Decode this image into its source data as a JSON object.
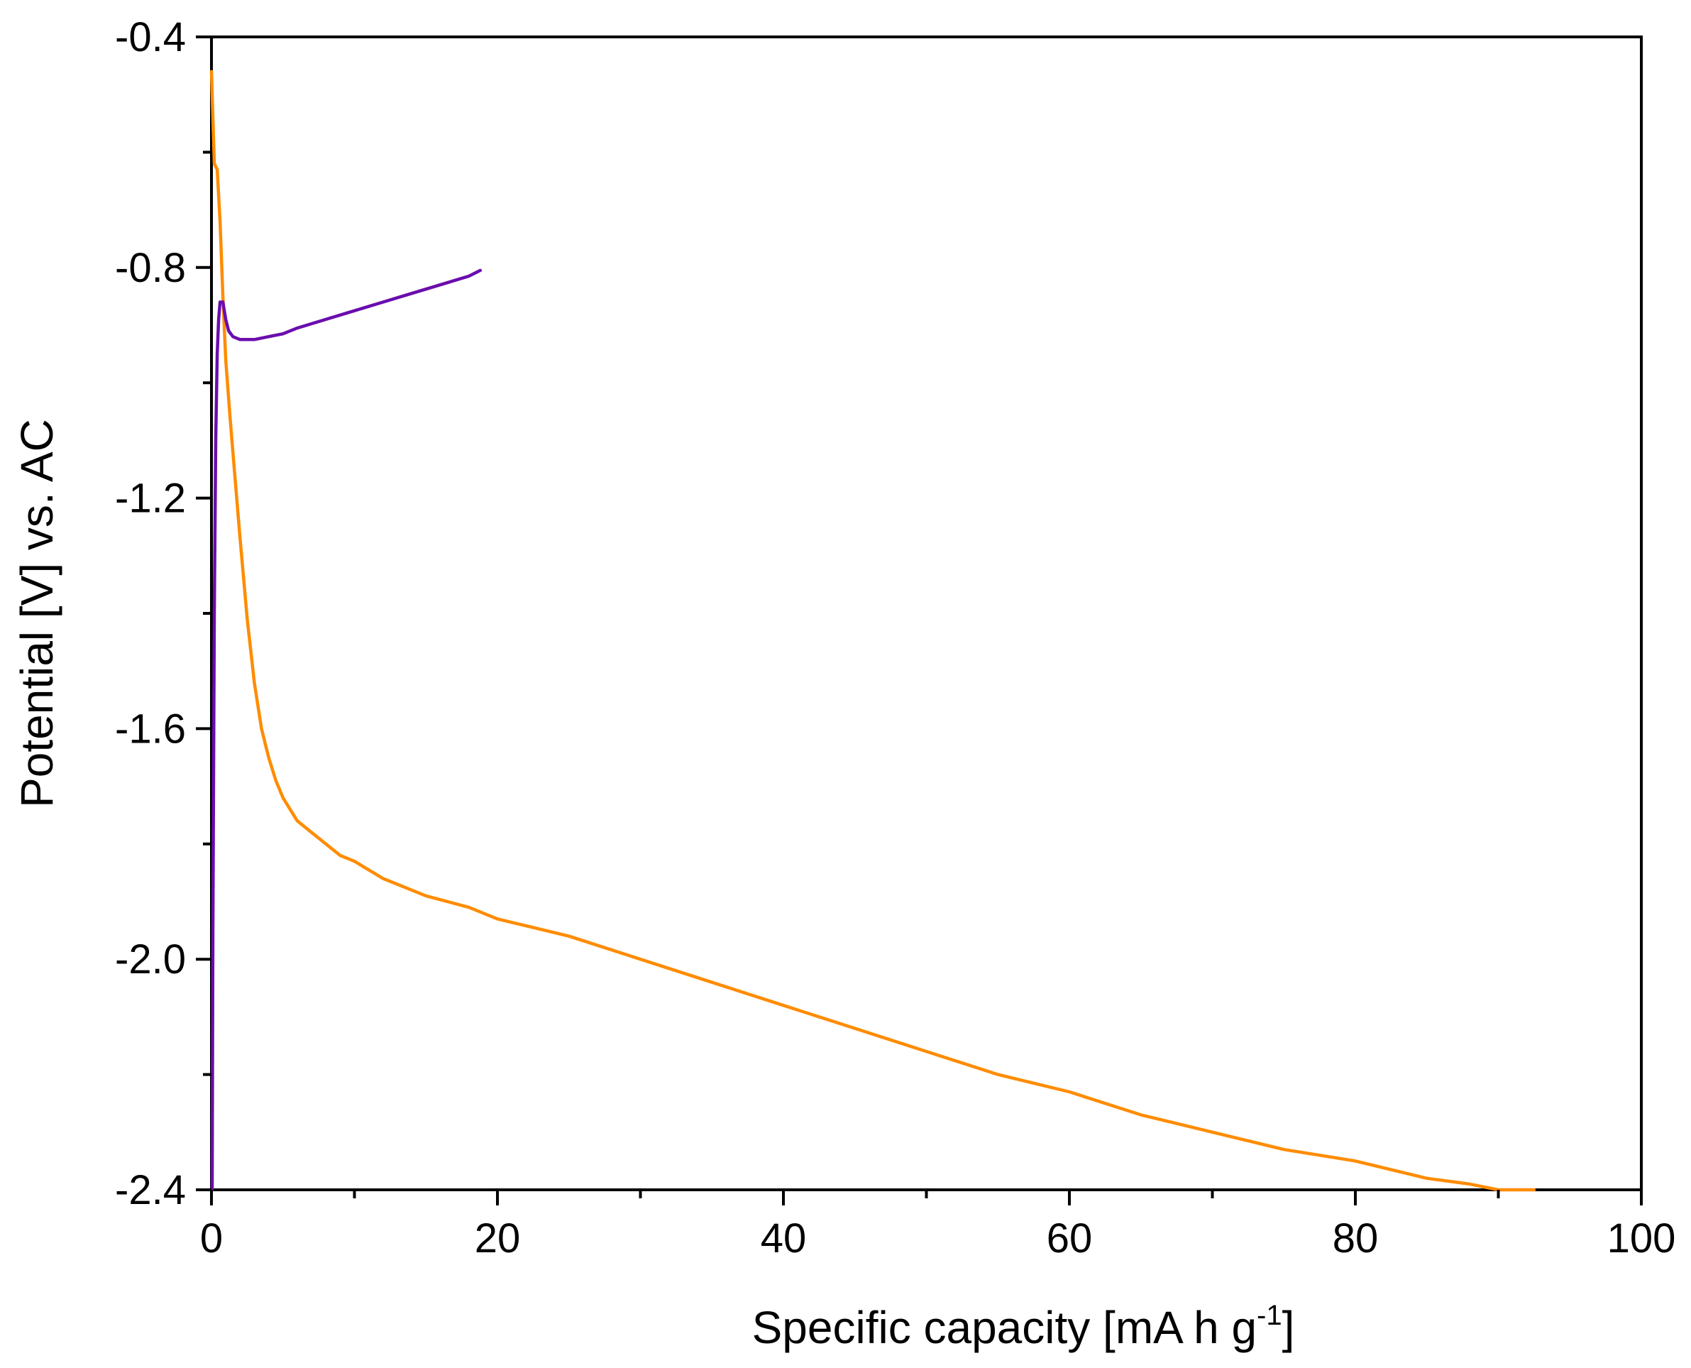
{
  "chart_data": {
    "type": "line",
    "title": "",
    "xlabel": "Specific capacity [mA h g",
    "xlabel_superscript": "-1",
    "xlabel_suffix": "]",
    "ylabel": "Potential [V] vs. AC",
    "xlim": [
      0,
      100
    ],
    "ylim": [
      -2.4,
      -0.4
    ],
    "x_major_ticks": [
      0,
      20,
      40,
      60,
      80,
      100
    ],
    "x_tick_labels": [
      "0",
      "20",
      "40",
      "60",
      "80",
      "100"
    ],
    "x_minor_ticks": [
      10,
      30,
      50,
      70,
      90
    ],
    "y_major_ticks": [
      -0.4,
      -0.8,
      -1.2,
      -1.6,
      -2.0,
      -2.4
    ],
    "y_tick_labels": [
      "-0.4",
      "-0.8",
      "-1.2",
      "-1.6",
      "-2.0",
      "-2.4"
    ],
    "y_minor_ticks": [
      -0.6,
      -1.0,
      -1.4,
      -1.8,
      -2.2
    ],
    "grid": false,
    "legend": "none",
    "series": [
      {
        "name": "orange",
        "color": "#ff8c00",
        "x": [
          0.0,
          0.2,
          0.4,
          0.6,
          0.8,
          1.0,
          1.3,
          1.6,
          2.0,
          2.5,
          3.0,
          3.5,
          4.0,
          4.5,
          5.0,
          6.0,
          7.0,
          8.0,
          9.0,
          10.0,
          12.0,
          15.0,
          18.0,
          20.0,
          25.0,
          30.0,
          35.0,
          40.0,
          45.0,
          50.0,
          55.0,
          60.0,
          65.0,
          70.0,
          75.0,
          80.0,
          85.0,
          88.0,
          90.0,
          92.5
        ],
        "y": [
          -0.46,
          -0.62,
          -0.63,
          -0.72,
          -0.85,
          -0.96,
          -1.06,
          -1.15,
          -1.27,
          -1.41,
          -1.52,
          -1.6,
          -1.65,
          -1.69,
          -1.72,
          -1.76,
          -1.78,
          -1.8,
          -1.82,
          -1.83,
          -1.86,
          -1.89,
          -1.91,
          -1.93,
          -1.96,
          -2.0,
          -2.04,
          -2.08,
          -2.12,
          -2.16,
          -2.2,
          -2.23,
          -2.27,
          -2.3,
          -2.33,
          -2.35,
          -2.38,
          -2.39,
          -2.4,
          -2.4
        ]
      },
      {
        "name": "purple",
        "color": "#6a0dad",
        "x": [
          0.05,
          0.1,
          0.2,
          0.3,
          0.4,
          0.5,
          0.6,
          0.8,
          1.0,
          1.2,
          1.5,
          2.0,
          2.5,
          3.0,
          4.0,
          5.0,
          6.0,
          8.0,
          10.0,
          12.0,
          14.0,
          16.0,
          18.0,
          18.8
        ],
        "y": [
          -2.4,
          -1.95,
          -1.4,
          -1.1,
          -0.95,
          -0.89,
          -0.86,
          -0.86,
          -0.89,
          -0.91,
          -0.92,
          -0.925,
          -0.925,
          -0.925,
          -0.92,
          -0.915,
          -0.905,
          -0.89,
          -0.875,
          -0.86,
          -0.845,
          -0.83,
          -0.815,
          -0.805
        ]
      }
    ]
  }
}
